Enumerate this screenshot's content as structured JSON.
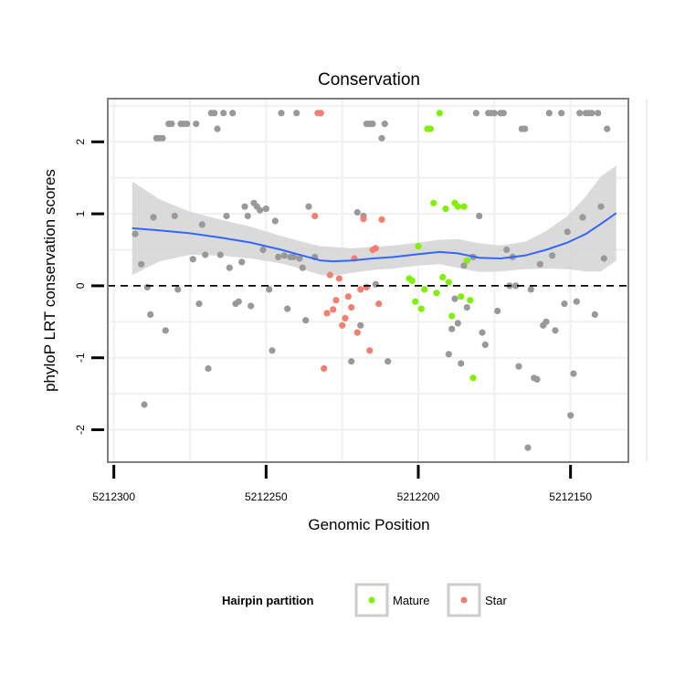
{
  "chart_data": {
    "type": "scatter",
    "title": "Conservation",
    "xlabel": "Genomic Position",
    "ylabel": "phyloP LRT conservation scores",
    "x_reversed": true,
    "xlim": [
      5212302,
      5212131
    ],
    "ylim": [
      -2.45,
      2.6
    ],
    "x_ticks": [
      5212300,
      5212250,
      5212200,
      5212150
    ],
    "y_ticks": [
      -2,
      -1,
      0,
      1,
      2
    ],
    "grid": true,
    "reference_line": {
      "y": 0,
      "style": "dashed"
    },
    "legend": {
      "title": "Hairpin partition",
      "placement": "bottom"
    },
    "colors": {
      "other": "#999999",
      "Mature": "#7ff000",
      "Star": "#f28070",
      "smooth": "#3366ff",
      "band": "#d3d3d3"
    },
    "series": [
      {
        "name": "",
        "key": "other",
        "points": [
          [
            5212293,
            0.72
          ],
          [
            5212291,
            0.3
          ],
          [
            5212290,
            -1.65
          ],
          [
            5212289,
            -0.02
          ],
          [
            5212288,
            -0.4
          ],
          [
            5212287,
            0.95
          ],
          [
            5212286,
            2.05
          ],
          [
            5212285,
            2.05
          ],
          [
            5212284,
            2.05
          ],
          [
            5212283,
            -0.62
          ],
          [
            5212282,
            2.25
          ],
          [
            5212281,
            2.25
          ],
          [
            5212280,
            0.97
          ],
          [
            5212279,
            -0.05
          ],
          [
            5212278,
            2.25
          ],
          [
            5212277,
            2.25
          ],
          [
            5212276,
            2.25
          ],
          [
            5212274,
            0.37
          ],
          [
            5212273,
            2.25
          ],
          [
            5212272,
            -0.25
          ],
          [
            5212271,
            0.85
          ],
          [
            5212270,
            0.43
          ],
          [
            5212269,
            -1.15
          ],
          [
            5212268,
            2.4
          ],
          [
            5212267,
            2.4
          ],
          [
            5212266,
            2.18
          ],
          [
            5212265,
            0.43
          ],
          [
            5212264,
            2.4
          ],
          [
            5212263,
            0.97
          ],
          [
            5212262,
            0.25
          ],
          [
            5212261,
            2.4
          ],
          [
            5212260,
            -0.25
          ],
          [
            5212259,
            -0.22
          ],
          [
            5212258,
            0.33
          ],
          [
            5212257,
            1.1
          ],
          [
            5212256,
            0.97
          ],
          [
            5212255,
            -0.28
          ],
          [
            5212254,
            1.15
          ],
          [
            5212253,
            1.1
          ],
          [
            5212252,
            1.05
          ],
          [
            5212251,
            0.5
          ],
          [
            5212250,
            1.07
          ],
          [
            5212249,
            -0.05
          ],
          [
            5212248,
            -0.9
          ],
          [
            5212247,
            0.9
          ],
          [
            5212246,
            0.4
          ],
          [
            5212245,
            2.4
          ],
          [
            5212244,
            0.42
          ],
          [
            5212243,
            -0.32
          ],
          [
            5212242,
            0.4
          ],
          [
            5212241,
            0.4
          ],
          [
            5212240,
            2.4
          ],
          [
            5212239,
            0.38
          ],
          [
            5212238,
            0.25
          ],
          [
            5212237,
            -0.48
          ],
          [
            5212236,
            1.1
          ],
          [
            5212234,
            0.4
          ],
          [
            5212222,
            -1.05
          ],
          [
            5212220,
            1.02
          ],
          [
            5212219,
            -0.55
          ],
          [
            5212218,
            0.97
          ],
          [
            5212217,
            2.25
          ],
          [
            5212216,
            2.25
          ],
          [
            5212215,
            2.25
          ],
          [
            5212214,
            0.02
          ],
          [
            5212212,
            2.05
          ],
          [
            5212211,
            2.25
          ],
          [
            5212210,
            -1.05
          ],
          [
            5212190,
            -0.95
          ],
          [
            5212189,
            -0.6
          ],
          [
            5212188,
            -0.18
          ],
          [
            5212187,
            -0.52
          ],
          [
            5212186,
            -1.08
          ],
          [
            5212185,
            0.28
          ],
          [
            5212184,
            -0.3
          ],
          [
            5212182,
            0.4
          ],
          [
            5212181,
            2.4
          ],
          [
            5212180,
            0.97
          ],
          [
            5212179,
            -0.65
          ],
          [
            5212178,
            -0.82
          ],
          [
            5212177,
            2.4
          ],
          [
            5212176,
            2.4
          ],
          [
            5212175,
            2.4
          ],
          [
            5212174,
            -0.35
          ],
          [
            5212173,
            2.4
          ],
          [
            5212172,
            2.4
          ],
          [
            5212171,
            0.5
          ],
          [
            5212170,
            0.0
          ],
          [
            5212169,
            0.4
          ],
          [
            5212168,
            0.0
          ],
          [
            5212167,
            -1.12
          ],
          [
            5212166,
            2.18
          ],
          [
            5212165,
            2.18
          ],
          [
            5212164,
            -2.25
          ],
          [
            5212163,
            -0.05
          ],
          [
            5212162,
            -1.28
          ],
          [
            5212161,
            -1.3
          ],
          [
            5212160,
            0.3
          ],
          [
            5212159,
            -0.55
          ],
          [
            5212158,
            -0.5
          ],
          [
            5212157,
            2.4
          ],
          [
            5212156,
            0.42
          ],
          [
            5212155,
            -0.62
          ],
          [
            5212153,
            2.4
          ],
          [
            5212152,
            -0.25
          ],
          [
            5212151,
            0.75
          ],
          [
            5212150,
            -1.8
          ],
          [
            5212149,
            -1.22
          ],
          [
            5212148,
            -0.22
          ],
          [
            5212147,
            2.4
          ],
          [
            5212146,
            0.95
          ],
          [
            5212145,
            2.4
          ],
          [
            5212144,
            2.4
          ],
          [
            5212143,
            2.4
          ],
          [
            5212142,
            -0.4
          ],
          [
            5212141,
            2.4
          ],
          [
            5212140,
            1.1
          ],
          [
            5212139,
            0.38
          ],
          [
            5212138,
            2.18
          ]
        ]
      },
      {
        "name": "Mature",
        "key": "Mature",
        "points": [
          [
            5212203,
            0.1
          ],
          [
            5212202,
            0.07
          ],
          [
            5212201,
            -0.22
          ],
          [
            5212200,
            0.55
          ],
          [
            5212199,
            -0.32
          ],
          [
            5212198,
            -0.05
          ],
          [
            5212197,
            2.18
          ],
          [
            5212196,
            2.18
          ],
          [
            5212195,
            1.15
          ],
          [
            5212194,
            -0.1
          ],
          [
            5212193,
            2.4
          ],
          [
            5212192,
            0.12
          ],
          [
            5212191,
            1.07
          ],
          [
            5212190,
            0.05
          ],
          [
            5212189,
            -0.42
          ],
          [
            5212188,
            1.15
          ],
          [
            5212187,
            1.1
          ],
          [
            5212186,
            -0.15
          ],
          [
            5212185,
            1.1
          ],
          [
            5212184,
            0.35
          ],
          [
            5212183,
            -0.2
          ],
          [
            5212182,
            -1.28
          ]
        ]
      },
      {
        "name": "Star",
        "key": "Star",
        "points": [
          [
            5212234,
            0.97
          ],
          [
            5212233,
            2.4
          ],
          [
            5212232,
            2.4
          ],
          [
            5212231,
            -1.15
          ],
          [
            5212230,
            -0.38
          ],
          [
            5212229,
            0.15
          ],
          [
            5212228,
            -0.33
          ],
          [
            5212227,
            -0.2
          ],
          [
            5212226,
            0.1
          ],
          [
            5212225,
            -0.55
          ],
          [
            5212224,
            -0.45
          ],
          [
            5212223,
            -0.15
          ],
          [
            5212222,
            -0.3
          ],
          [
            5212221,
            0.38
          ],
          [
            5212220,
            -0.65
          ],
          [
            5212219,
            -0.05
          ],
          [
            5212218,
            0.93
          ],
          [
            5212217,
            -0.02
          ],
          [
            5212216,
            -0.9
          ],
          [
            5212215,
            0.5
          ],
          [
            5212214,
            0.52
          ],
          [
            5212213,
            -0.25
          ],
          [
            5212212,
            0.92
          ]
        ]
      }
    ],
    "smooth": {
      "x": [
        5212294,
        5212285,
        5212275,
        5212265,
        5212255,
        5212245,
        5212238,
        5212232,
        5212228,
        5212222,
        5212215,
        5212208,
        5212200,
        5212193,
        5212187,
        5212180,
        5212173,
        5212165,
        5212158,
        5212151,
        5212145,
        5212140,
        5212135
      ],
      "y": [
        0.8,
        0.77,
        0.73,
        0.67,
        0.6,
        0.5,
        0.42,
        0.35,
        0.34,
        0.35,
        0.38,
        0.4,
        0.44,
        0.47,
        0.45,
        0.39,
        0.38,
        0.42,
        0.5,
        0.6,
        0.72,
        0.86,
        1.01
      ],
      "lower": [
        0.15,
        0.34,
        0.43,
        0.42,
        0.38,
        0.31,
        0.23,
        0.15,
        0.14,
        0.18,
        0.22,
        0.24,
        0.28,
        0.3,
        0.25,
        0.19,
        0.2,
        0.23,
        0.24,
        0.23,
        0.2,
        0.2,
        0.35
      ],
      "upper": [
        1.45,
        1.2,
        1.03,
        0.92,
        0.82,
        0.69,
        0.61,
        0.55,
        0.54,
        0.52,
        0.54,
        0.56,
        0.6,
        0.64,
        0.65,
        0.59,
        0.56,
        0.61,
        0.76,
        0.97,
        1.24,
        1.52,
        1.67
      ]
    }
  }
}
